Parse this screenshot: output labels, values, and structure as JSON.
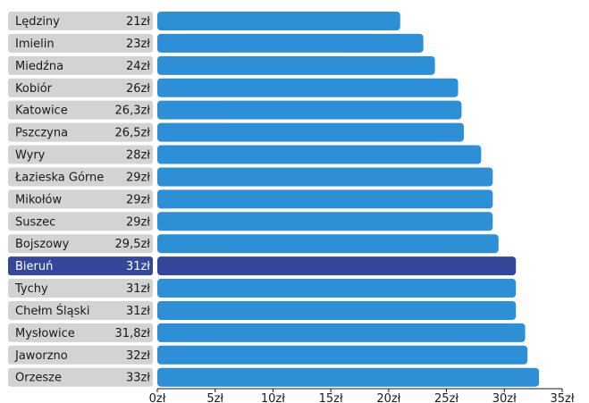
{
  "chart_data": {
    "type": "bar",
    "orientation": "horizontal",
    "categories": [
      "Lędziny",
      "Imielin",
      "Miedźna",
      "Kobiór",
      "Katowice",
      "Pszczyna",
      "Wyry",
      "Łazieska Górne",
      "Mikołów",
      "Suszec",
      "Bojszowy",
      "Bieruń",
      "Tychy",
      "Chełm Śląski",
      "Mysłowice",
      "Jaworzno",
      "Orzesze"
    ],
    "values": [
      21,
      23,
      24,
      26,
      26.3,
      26.5,
      28,
      29,
      29,
      29,
      29.5,
      31,
      31,
      31,
      31.8,
      32,
      33
    ],
    "value_labels": [
      "21zł",
      "23zł",
      "24zł",
      "26zł",
      "26,3zł",
      "26,5zł",
      "28zł",
      "29zł",
      "29zł",
      "29zł",
      "29,5zł",
      "31zł",
      "31zł",
      "31zł",
      "31,8zł",
      "32zł",
      "33zł"
    ],
    "highlight": "Bieruń",
    "xlim": [
      0,
      35
    ],
    "x_ticks": [
      "0zł",
      "5zł",
      "10zł",
      "15zł",
      "20zł",
      "25zł",
      "30zł",
      "35zł"
    ],
    "colors": {
      "bar": "#2d8fd5",
      "bar_highlight": "#34479b",
      "label_bg": "#d3d3d3",
      "label_bg_highlight": "#34479b"
    },
    "title": "",
    "xlabel": "",
    "ylabel": ""
  }
}
